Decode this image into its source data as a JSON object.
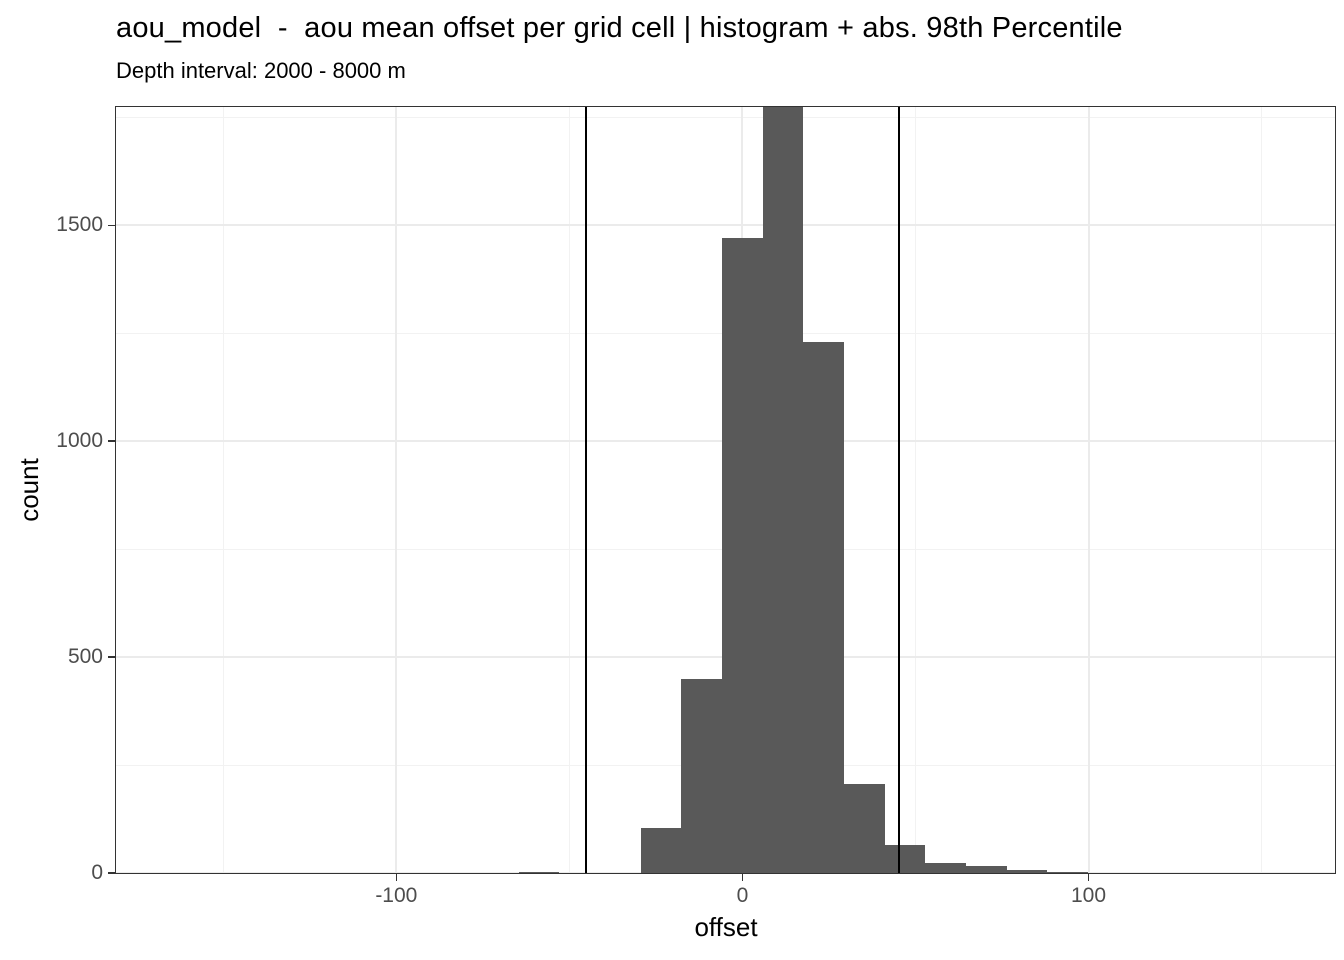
{
  "title": "aou_model  -  aou mean offset per grid cell | histogram + abs. 98th Percentile",
  "subtitle": "Depth interval: 2000 - 8000 m",
  "chart_data": {
    "type": "histogram",
    "xlabel": "offset",
    "ylabel": "count",
    "x_ticks": [
      -100,
      0,
      100
    ],
    "x_minor_ticks": [
      -150,
      -50,
      50,
      150
    ],
    "y_ticks": [
      0,
      500,
      1000,
      1500
    ],
    "y_minor_ticks": [
      250,
      750,
      1250,
      1750
    ],
    "xlim": [
      -181,
      171.5
    ],
    "ylim": [
      0,
      1774
    ],
    "bin_width": 11.75,
    "bin_left_edges": [
      -64.63,
      -52.88,
      -41.13,
      -29.38,
      -17.63,
      -5.88,
      5.88,
      17.63,
      29.38,
      41.13,
      52.88,
      64.63,
      76.38,
      88.13
    ],
    "counts": [
      2,
      1,
      1,
      105,
      450,
      1470,
      1774,
      1230,
      205,
      65,
      24,
      16,
      8,
      2
    ],
    "clipped_bar_index": 6,
    "clipped_note": "tallest bar reaches top of panel (count >= ~1774, clipped)",
    "percentile_lines_x": [
      -45.1,
      45.1
    ],
    "grid": true,
    "legend": "none"
  },
  "colors": {
    "bar": "#595959",
    "percentile_line": "#000000",
    "panel_border": "#333333",
    "grid_major": "#ebebeb",
    "grid_minor": "#f2f2f2",
    "tick_text": "#4d4d4d",
    "text": "#000000",
    "background": "#ffffff"
  }
}
